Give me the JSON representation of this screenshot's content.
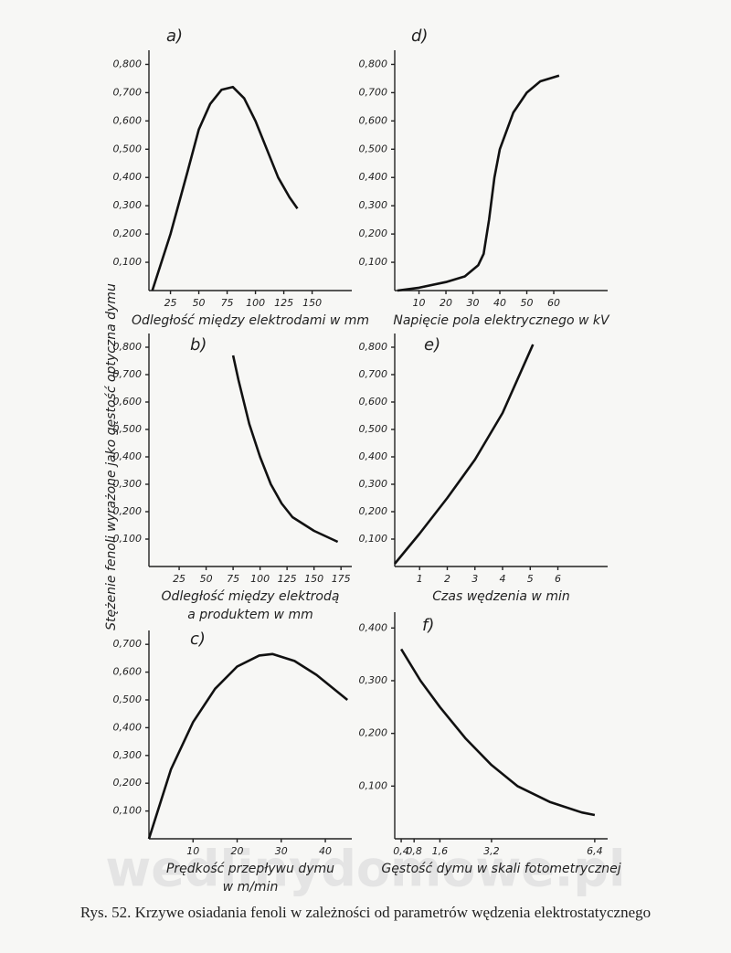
{
  "figure": {
    "y_label": "Stężenie fenoli wyrażone jako gęstość optyczna dymu",
    "caption": "Rys. 52. Krzywe osiadania fenoli w zależności od parametrów wędzenia elektrostatycznego",
    "watermark": "wedlinydomowe.pl"
  },
  "chart_data": [
    {
      "type": "line",
      "panel": "a)",
      "x_label": [
        "Odległość między elektrodami w mm"
      ],
      "x": [
        9,
        25,
        40,
        50,
        60,
        70,
        80,
        90,
        100,
        110,
        120,
        130,
        137
      ],
      "values": [
        0,
        0.2,
        0.42,
        0.57,
        0.66,
        0.71,
        0.72,
        0.68,
        0.6,
        0.5,
        0.4,
        0.33,
        0.29
      ],
      "color": "#111111",
      "xlim": [
        6,
        185
      ],
      "ylim": [
        0,
        0.85
      ],
      "xticks": [
        25,
        50,
        75,
        100,
        125,
        150
      ],
      "yticks": [
        {
          "value": 0.1,
          "label": "0,100"
        },
        {
          "value": 0.2,
          "label": "0,200"
        },
        {
          "value": 0.3,
          "label": "0,300"
        },
        {
          "value": 0.4,
          "label": "0,400"
        },
        {
          "value": 0.5,
          "label": "0,500"
        },
        {
          "value": 0.6,
          "label": "0,600"
        },
        {
          "value": 0.7,
          "label": "0,700"
        },
        {
          "value": 0.8,
          "label": "0,800"
        }
      ]
    },
    {
      "type": "line",
      "panel": "d)",
      "x_label": [
        "Napięcie pola elektrycznego w kV"
      ],
      "x": [
        2,
        10,
        20,
        27,
        32,
        34,
        36,
        38,
        40,
        45,
        50,
        55,
        62
      ],
      "values": [
        0,
        0.01,
        0.03,
        0.05,
        0.09,
        0.13,
        0.25,
        0.4,
        0.5,
        0.63,
        0.7,
        0.74,
        0.76
      ],
      "color": "#111111",
      "xlim": [
        1,
        80
      ],
      "ylim": [
        0,
        0.85
      ],
      "xticks": [
        10,
        20,
        30,
        40,
        50,
        60
      ],
      "yticks": [
        {
          "value": 0.1,
          "label": "0,100"
        },
        {
          "value": 0.2,
          "label": "0,200"
        },
        {
          "value": 0.3,
          "label": "0,300"
        },
        {
          "value": 0.4,
          "label": "0,400"
        },
        {
          "value": 0.5,
          "label": "0,500"
        },
        {
          "value": 0.6,
          "label": "0,600"
        },
        {
          "value": 0.7,
          "label": "0,700"
        },
        {
          "value": 0.8,
          "label": "0,800"
        }
      ]
    },
    {
      "type": "line",
      "panel": "b)",
      "x_label": [
        "Odległość między elektrodą",
        "a produktem w mm"
      ],
      "x": [
        75,
        80,
        90,
        100,
        110,
        120,
        130,
        150,
        172
      ],
      "values": [
        0.77,
        0.68,
        0.52,
        0.4,
        0.3,
        0.23,
        0.18,
        0.13,
        0.09
      ],
      "color": "#111111",
      "xlim": [
        -3,
        185
      ],
      "ylim": [
        0,
        0.85
      ],
      "xticks": [
        25,
        50,
        75,
        100,
        125,
        150,
        175
      ],
      "yticks": [
        {
          "value": 0.1,
          "label": "0,100"
        },
        {
          "value": 0.2,
          "label": "0,200"
        },
        {
          "value": 0.3,
          "label": "0,300"
        },
        {
          "value": 0.4,
          "label": "0,400"
        },
        {
          "value": 0.5,
          "label": "0,500"
        },
        {
          "value": 0.6,
          "label": "0,600"
        },
        {
          "value": 0.7,
          "label": "0,700"
        },
        {
          "value": 0.8,
          "label": "0,800"
        }
      ]
    },
    {
      "type": "line",
      "panel": "e)",
      "x_label": [
        "Czas wędzenia w min"
      ],
      "x": [
        0.1,
        1,
        2,
        3,
        4,
        5.1
      ],
      "values": [
        0.01,
        0.12,
        0.25,
        0.39,
        0.56,
        0.81
      ],
      "color": "#111111",
      "xlim": [
        0.1,
        7.8
      ],
      "ylim": [
        0,
        0.85
      ],
      "xticks": [
        1,
        2,
        3,
        4,
        5,
        6
      ],
      "yticks": [
        {
          "value": 0.1,
          "label": "0,100"
        },
        {
          "value": 0.2,
          "label": "0,200"
        },
        {
          "value": 0.3,
          "label": "0,300"
        },
        {
          "value": 0.4,
          "label": "0,400"
        },
        {
          "value": 0.5,
          "label": "0,500"
        },
        {
          "value": 0.6,
          "label": "0,600"
        },
        {
          "value": 0.7,
          "label": "0,700"
        },
        {
          "value": 0.8,
          "label": "0,800"
        }
      ]
    },
    {
      "type": "line",
      "panel": "c)",
      "x_label": [
        "Prędkość przepływu dymu",
        "w m/min"
      ],
      "x": [
        0,
        5,
        10,
        15,
        20,
        25,
        28,
        33,
        38,
        45
      ],
      "values": [
        0,
        0.25,
        0.42,
        0.54,
        0.62,
        0.66,
        0.665,
        0.64,
        0.59,
        0.5
      ],
      "color": "#111111",
      "xlim": [
        0,
        46
      ],
      "ylim": [
        0,
        0.75
      ],
      "xticks": [
        10,
        20,
        30,
        40
      ],
      "yticks": [
        {
          "value": 0.1,
          "label": "0,100"
        },
        {
          "value": 0.2,
          "label": "0,200"
        },
        {
          "value": 0.3,
          "label": "0,300"
        },
        {
          "value": 0.4,
          "label": "0,400"
        },
        {
          "value": 0.5,
          "label": "0,500"
        },
        {
          "value": 0.6,
          "label": "0,600"
        },
        {
          "value": 0.7,
          "label": "0,700"
        }
      ]
    },
    {
      "type": "line",
      "panel": "f)",
      "x_label": [
        "Gęstość dymu w skali fotometrycznej"
      ],
      "x": [
        0.4,
        1,
        1.6,
        2.4,
        3.2,
        4,
        5,
        6,
        6.4
      ],
      "values": [
        0.36,
        0.3,
        0.25,
        0.19,
        0.14,
        0.1,
        0.07,
        0.05,
        0.045
      ],
      "color": "#111111",
      "xlim": [
        0.2,
        6.8
      ],
      "ylim": [
        0,
        0.43
      ],
      "xticks": [
        {
          "value": 0.4,
          "label": "0,4"
        },
        {
          "value": 0.8,
          "label": "0,8"
        },
        {
          "value": 1.6,
          "label": "1,6"
        },
        {
          "value": 3.2,
          "label": "3,2"
        },
        {
          "value": 6.4,
          "label": "6,4"
        }
      ],
      "yticks": [
        {
          "value": 0.1,
          "label": "0,100"
        },
        {
          "value": 0.2,
          "label": "0,200"
        },
        {
          "value": 0.3,
          "label": "0,300"
        },
        {
          "value": 0.4,
          "label": "0,400"
        }
      ]
    }
  ]
}
